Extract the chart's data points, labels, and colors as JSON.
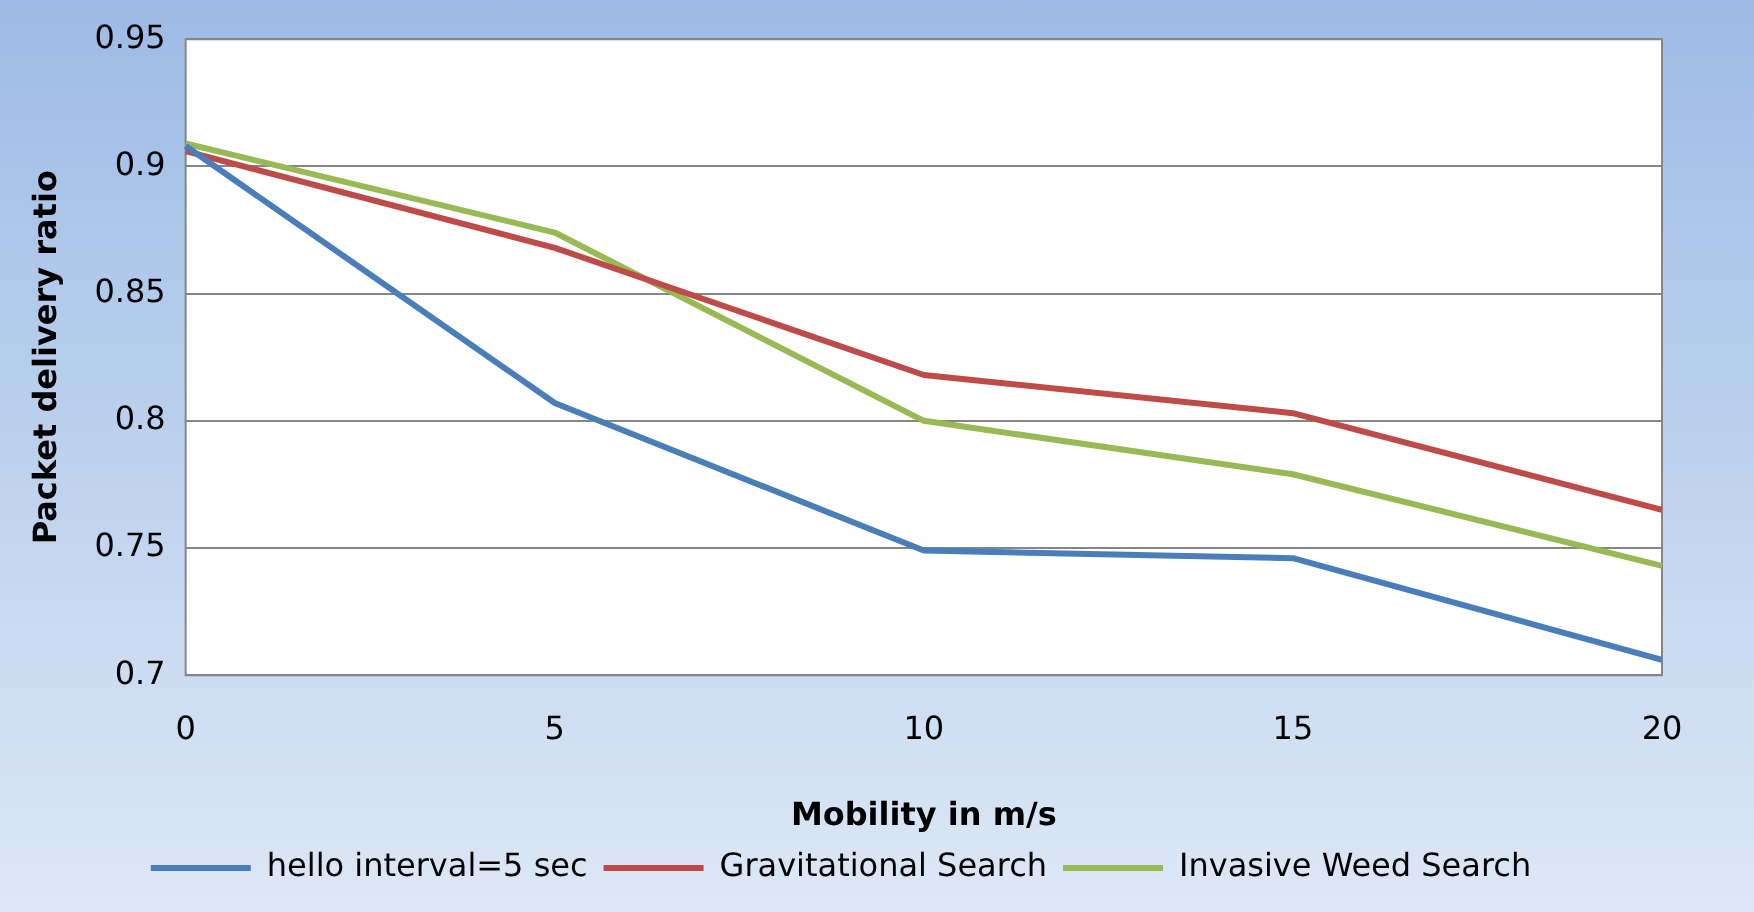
{
  "chart_data": {
    "type": "line",
    "xlabel": "Mobility in m/s",
    "ylabel": "Packet delivery ratio",
    "categories": [
      "0",
      "5",
      "10",
      "15",
      "20"
    ],
    "series": [
      {
        "name": "hello interval=5 sec",
        "color": "#4a7ebb",
        "values": [
          0.908,
          0.807,
          0.749,
          0.746,
          0.706
        ]
      },
      {
        "name": "Gravitational Search",
        "color": "#be4b48",
        "values": [
          0.906,
          0.868,
          0.818,
          0.803,
          0.765
        ]
      },
      {
        "name": "Invasive Weed Search",
        "color": "#98b954",
        "values": [
          0.909,
          0.874,
          0.8,
          0.779,
          0.743
        ]
      }
    ],
    "ylim": [
      0.7,
      0.95
    ],
    "yticks": [
      0.7,
      0.75,
      0.8,
      0.85,
      0.9,
      0.95
    ],
    "grid": "y",
    "legend": "bottom",
    "marker": "none",
    "line_style": "solid"
  }
}
